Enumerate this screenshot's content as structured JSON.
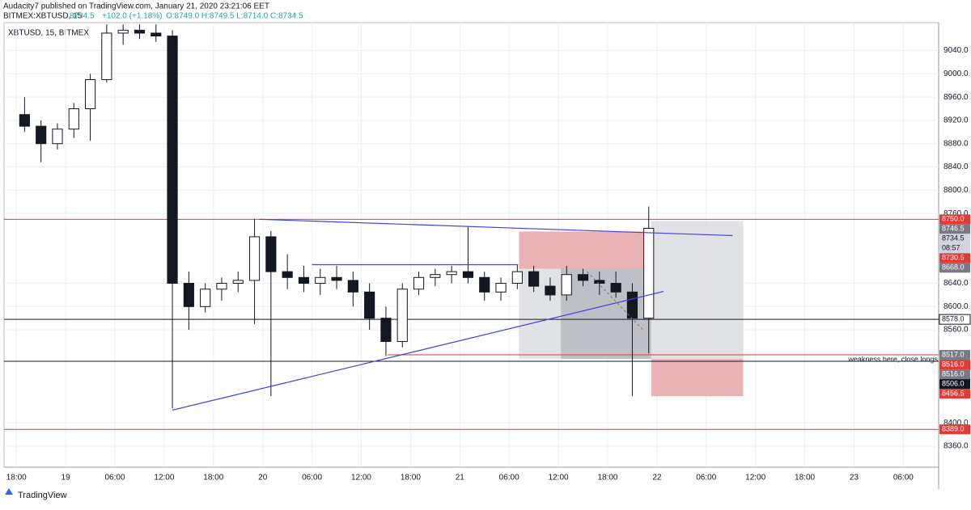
{
  "header": {
    "publisher": "Audacity7 published on TradingView.com, January 21, 2020 23:21:06 EET",
    "symbol": "BITMEX:XBTUSD, 15",
    "last": "8734.5",
    "change": "+102.0 (+1.18%)",
    "ohlc": "O:8749.0 H:8749.5 L:8714.0 C:8734.5"
  },
  "footer": {
    "brand": "TradingView"
  },
  "chart_data": {
    "type": "candlestick",
    "legend": "XBTUSD, 15, BITMEX",
    "x": [
      0,
      2,
      4,
      6,
      8,
      10,
      12,
      14,
      16,
      18,
      20,
      22,
      24,
      26,
      28,
      30,
      32,
      34,
      36,
      38,
      40,
      42,
      44,
      46,
      48,
      50,
      52,
      54,
      56,
      58,
      60,
      62,
      64,
      66,
      68,
      70,
      72,
      74,
      76
    ],
    "open": [
      8930,
      8910,
      8880,
      8905,
      8940,
      8990,
      9070,
      9075,
      9070,
      9065,
      8640,
      8600,
      8630,
      8640,
      8645,
      8720,
      8660,
      8650,
      8640,
      8650,
      8645,
      8625,
      8580,
      8540,
      8630,
      8650,
      8655,
      8660,
      8650,
      8625,
      8640,
      8660,
      8635,
      8620,
      8655,
      8645,
      8640,
      8625,
      8580
    ],
    "high": [
      8960,
      8920,
      8915,
      8950,
      9000,
      9085,
      9085,
      9085,
      9085,
      9075,
      8660,
      8640,
      8650,
      8660,
      8751,
      8730,
      8690,
      8670,
      8665,
      8670,
      8660,
      8640,
      8600,
      8640,
      8660,
      8665,
      8670,
      8737,
      8660,
      8650,
      8672,
      8670,
      8650,
      8670,
      8665,
      8660,
      8660,
      8640,
      8772
    ],
    "low": [
      8900,
      8848,
      8870,
      8890,
      8885,
      8985,
      9050,
      9060,
      9055,
      8425,
      8560,
      8590,
      8610,
      8625,
      8570,
      8446,
      8630,
      8625,
      8620,
      8630,
      8600,
      8560,
      8515,
      8530,
      8620,
      8635,
      8640,
      8640,
      8610,
      8610,
      8630,
      8625,
      8610,
      8610,
      8635,
      8620,
      8615,
      8446,
      8520
    ],
    "close": [
      8910,
      8880,
      8905,
      8940,
      8990,
      9070,
      9075,
      9070,
      9065,
      8640,
      8600,
      8630,
      8640,
      8645,
      8720,
      8660,
      8650,
      8640,
      8650,
      8645,
      8625,
      8580,
      8540,
      8630,
      8650,
      8655,
      8660,
      8650,
      8625,
      8640,
      8660,
      8635,
      8620,
      8655,
      8645,
      8640,
      8625,
      8580,
      8734.5
    ],
    "candle_hours": 2,
    "up_color": "#ffffff",
    "down_color": "#131722",
    "xlim": [
      -1.5,
      112.3
    ],
    "ylim": [
      8324,
      9088
    ],
    "xticks": [
      {
        "value": 0,
        "label": "18:00"
      },
      {
        "value": 6,
        "label": "19"
      },
      {
        "value": 12,
        "label": "06:00"
      },
      {
        "value": 18,
        "label": "12:00"
      },
      {
        "value": 24,
        "label": "18:00"
      },
      {
        "value": 30,
        "label": "20"
      },
      {
        "value": 36,
        "label": "06:00"
      },
      {
        "value": 42,
        "label": "12:00"
      },
      {
        "value": 48,
        "label": "18:00"
      },
      {
        "value": 54,
        "label": "21"
      },
      {
        "value": 60,
        "label": "06:00"
      },
      {
        "value": 66,
        "label": "12:00"
      },
      {
        "value": 72,
        "label": "18:00"
      },
      {
        "value": 78,
        "label": "22"
      },
      {
        "value": 84,
        "label": "06:00"
      },
      {
        "value": 90,
        "label": "12:00"
      },
      {
        "value": 96,
        "label": "18:00"
      },
      {
        "value": 102,
        "label": "23"
      },
      {
        "value": 108,
        "label": "06:00"
      }
    ],
    "yticks": [
      {
        "value": 9040,
        "label": "9040.0"
      },
      {
        "value": 9000,
        "label": "9000.0"
      },
      {
        "value": 8960,
        "label": "8960.0"
      },
      {
        "value": 8920,
        "label": "8920.0"
      },
      {
        "value": 8880,
        "label": "8880.0"
      },
      {
        "value": 8840,
        "label": "8840.0"
      },
      {
        "value": 8800,
        "label": "8800.0"
      },
      {
        "value": 8760,
        "label": "8760.0"
      },
      {
        "value": 8640,
        "label": "8640.0"
      },
      {
        "value": 8600,
        "label": "8600.0"
      },
      {
        "value": 8560,
        "label": "8560.0"
      },
      {
        "value": 8400,
        "label": "8400.0"
      },
      {
        "value": 8360,
        "label": "8360.0"
      }
    ],
    "grid": true,
    "price_labels": [
      {
        "value": 8750,
        "label": "8750.0",
        "color": "#e53935"
      },
      {
        "value": 8746.5,
        "label": "8746.5",
        "color": "#787b86"
      },
      {
        "value": 8734.5,
        "label": "8734.5",
        "color": "#d1d4dc"
      },
      {
        "label": "08:57",
        "color": "#d1d4dc"
      },
      {
        "value": 8730.5,
        "label": "8730.5",
        "color": "#e53935"
      },
      {
        "value": 8668,
        "label": "8668.0",
        "color": "#787b86"
      },
      {
        "value": 8578,
        "label": "8578.0",
        "color": "#ffffff"
      },
      {
        "value": 8517,
        "label": "8517.0",
        "color": "#787b86"
      },
      {
        "value": 8516,
        "label": "8516.0",
        "color": "#e53935"
      },
      {
        "value": 8516,
        "label": "8516.0",
        "color": "#787b86"
      },
      {
        "value": 8506,
        "label": "8506.0",
        "color": "#131722"
      },
      {
        "value": 8456.5,
        "label": "8456.5",
        "color": "#e53935"
      },
      {
        "value": 8389,
        "label": "8389.0",
        "color": "#e53935"
      }
    ],
    "levels": [
      {
        "value": 8750,
        "color": "#e53935"
      },
      {
        "value": 8578,
        "color": "#131722"
      },
      {
        "value": 8517,
        "color": "#e53935",
        "from": 45.2
      },
      {
        "value": 8506,
        "color": "#131722"
      },
      {
        "value": 8389,
        "color": "#e53935"
      }
    ],
    "zones": [
      {
        "t": [
          61.2,
          77.3
        ],
        "p": [
          8729,
          8665
        ],
        "color": "#e8a4a9"
      },
      {
        "t": [
          61.2,
          77.3
        ],
        "p": [
          8665,
          8510
        ],
        "color": "#dcdde0"
      },
      {
        "t": [
          66.3,
          77.3
        ],
        "p": [
          8665,
          8510
        ],
        "color": "#b9babf"
      },
      {
        "t": [
          77.3,
          88.5
        ],
        "p": [
          8747,
          8510
        ],
        "color": "#dcdde0"
      },
      {
        "t": [
          77.3,
          88.5
        ],
        "p": [
          8510,
          8446
        ],
        "color": "#e8a4a9"
      }
    ],
    "trend_lines": [
      {
        "t": [
          19,
          78.8
        ],
        "p": [
          8422,
          8626
        ],
        "color": "#3f3fe0"
      },
      {
        "t": [
          29.6,
          87.2
        ],
        "p": [
          8750,
          8722
        ],
        "color": "#3f3fe0"
      },
      {
        "t": [
          36,
          61.1
        ],
        "p": [
          8672,
          8672
        ],
        "color": "#3f3fe0"
      }
    ],
    "dashed": {
      "t": [
        69.5,
        76.3
      ],
      "p": [
        8660,
        8560
      ],
      "color": "#777"
    },
    "annotation": {
      "text": "weakness here, close longs",
      "t": 101.3,
      "p": 8506
    }
  }
}
